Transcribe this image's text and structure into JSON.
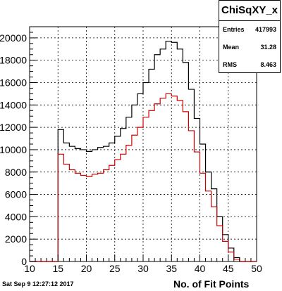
{
  "chart_data": {
    "type": "histogram",
    "title": "ChiSqXY_x",
    "xlabel": "No. of Fit Points",
    "ylabel": "",
    "xlim": [
      10,
      50
    ],
    "ylim": [
      0,
      21000
    ],
    "bin_width": 1,
    "grid": true,
    "x_ticks": [
      "10",
      "15",
      "20",
      "25",
      "30",
      "35",
      "40",
      "45",
      "50"
    ],
    "y_ticks": [
      "0",
      "2000",
      "4000",
      "6000",
      "8000",
      "10000",
      "12000",
      "14000",
      "16000",
      "18000",
      "20000"
    ],
    "series": [
      {
        "color": "#000000",
        "bin_edges": [
          10,
          11,
          12,
          13,
          14,
          15,
          16,
          17,
          18,
          19,
          20,
          21,
          22,
          23,
          24,
          25,
          26,
          27,
          28,
          29,
          30,
          31,
          32,
          33,
          34,
          35,
          36,
          37,
          38,
          39,
          40,
          41,
          42,
          43,
          44,
          45,
          46,
          47,
          48,
          49,
          50
        ],
        "values": [
          0,
          0,
          0,
          0,
          0,
          11800,
          10600,
          10300,
          10100,
          10000,
          9850,
          10000,
          10200,
          10300,
          10600,
          11200,
          11900,
          12900,
          14000,
          15000,
          16000,
          17200,
          18500,
          19000,
          19700,
          19600,
          19000,
          17800,
          15400,
          12800,
          10500,
          8000,
          6500,
          4000,
          2400,
          1200,
          350,
          0,
          0,
          0
        ]
      },
      {
        "color": "#cc0000",
        "bin_edges": [
          10,
          11,
          12,
          13,
          14,
          15,
          16,
          17,
          18,
          19,
          20,
          21,
          22,
          23,
          24,
          25,
          26,
          27,
          28,
          29,
          30,
          31,
          32,
          33,
          34,
          35,
          36,
          37,
          38,
          39,
          40,
          41,
          42,
          43,
          44,
          45,
          46,
          47,
          48,
          49,
          50
        ],
        "values": [
          0,
          0,
          0,
          0,
          0,
          9600,
          8700,
          8200,
          7900,
          7700,
          7600,
          7800,
          7900,
          8200,
          8600,
          9100,
          9600,
          10400,
          11300,
          12000,
          12900,
          13500,
          14100,
          14600,
          15000,
          14800,
          14400,
          13400,
          11700,
          9800,
          7900,
          6300,
          4900,
          3200,
          1800,
          850,
          200,
          0,
          0,
          0
        ]
      }
    ]
  },
  "stats": {
    "title": "ChiSqXY_x",
    "entries_label": "Entries",
    "entries_value": "417993",
    "mean_label": "Mean",
    "mean_value": "31.28",
    "rms_label": "RMS",
    "rms_value": "8.463"
  },
  "footer": {
    "date": "Sat Sep  9 12:27:12 2017"
  }
}
